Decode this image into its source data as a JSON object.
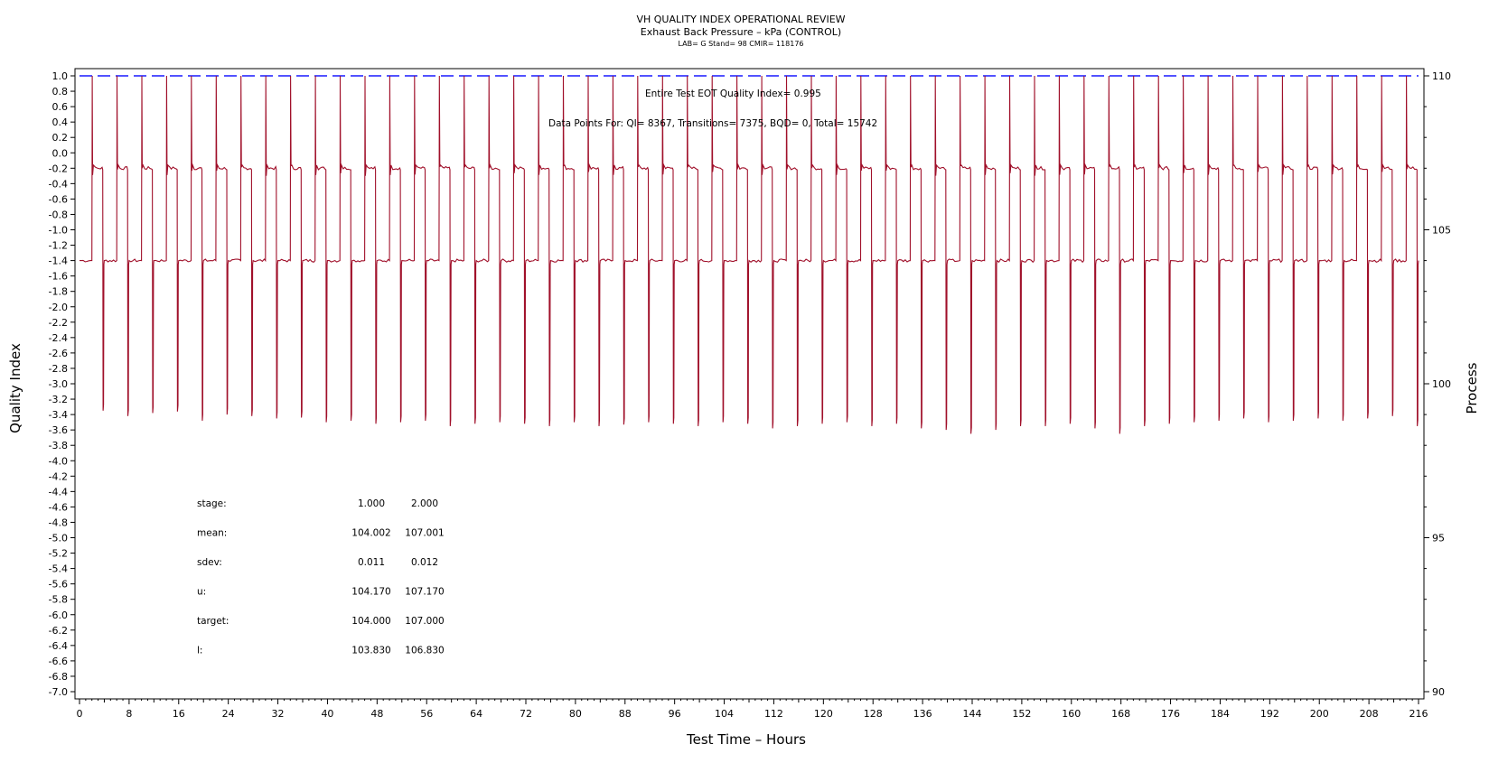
{
  "chart_data": {
    "type": "line",
    "title": "VH QUALITY INDEX OPERATIONAL REVIEW",
    "subtitle": "Exhaust Back Pressure – kPa (CONTROL)",
    "subtitle2": "LAB= G Stand= 98 CMIR= 118176",
    "xlabel": "Test Time – Hours",
    "ylabel_left": "Quality Index",
    "ylabel_right": "Process",
    "xlim": [
      0,
      216
    ],
    "ylim_left": [
      -7.0,
      1.0
    ],
    "ylim_right": [
      90,
      110
    ],
    "xticks": [
      0,
      8,
      16,
      24,
      32,
      40,
      48,
      56,
      64,
      72,
      80,
      88,
      96,
      104,
      112,
      120,
      128,
      136,
      144,
      152,
      160,
      168,
      176,
      184,
      192,
      200,
      208,
      216
    ],
    "yticks_left": [
      "1.0",
      "0.8",
      "0.6",
      "0.4",
      "0.2",
      "0.0",
      "-0.2",
      "-0.4",
      "-0.6",
      "-0.8",
      "-1.0",
      "-1.2",
      "-1.4",
      "-1.6",
      "-1.8",
      "-2.0",
      "-2.2",
      "-2.4",
      "-2.6",
      "-2.8",
      "-3.0",
      "-3.2",
      "-3.4",
      "-3.6",
      "-3.8",
      "-4.0",
      "-4.2",
      "-4.4",
      "-4.6",
      "-4.8",
      "-5.0",
      "-5.2",
      "-5.4",
      "-5.6",
      "-5.8",
      "-6.0",
      "-6.2",
      "-6.4",
      "-6.6",
      "-6.8",
      "-7.0"
    ],
    "yticks_right": [
      90,
      95,
      100,
      105,
      110
    ],
    "annotation_qi": "Entire Test EOT Quality Index=   0.995",
    "annotation_points": "Data Points For: QI=  8367, Transitions=  7375, BQD=     0, Total=  15742",
    "series": [
      {
        "axis": "left",
        "color": "#1a1aff",
        "style": "dashed",
        "points": [
          [
            0,
            1.0
          ],
          [
            216,
            1.0
          ]
        ]
      },
      {
        "axis": "left",
        "color": "#a0102a",
        "style": "solid",
        "cycle_period_hours": 4,
        "cycle_start_hours": 0,
        "stage_levels": [
          -1.4,
          -0.2
        ],
        "peak_value": 1.0,
        "trough_values": [
          -3.35,
          -3.42,
          -3.38,
          -3.36,
          -3.48,
          -3.4,
          -3.42,
          -3.45,
          -3.44,
          -3.5,
          -3.48,
          -3.52,
          -3.5,
          -3.48,
          -3.55,
          -3.52,
          -3.5,
          -3.52,
          -3.55,
          -3.5,
          -3.55,
          -3.53,
          -3.5,
          -3.52,
          -3.55,
          -3.5,
          -3.52,
          -3.58,
          -3.55,
          -3.52,
          -3.5,
          -3.55,
          -3.52,
          -3.58,
          -3.6,
          -3.65,
          -3.6,
          -3.55,
          -3.55,
          -3.52,
          -3.58,
          -3.65,
          -3.55,
          -3.52,
          -3.5,
          -3.48,
          -3.45,
          -3.5,
          -3.48,
          -3.45,
          -3.48,
          -3.45,
          -3.42,
          -3.55
        ]
      }
    ],
    "stats": {
      "header": [
        "stage:",
        "1.000",
        "2.000"
      ],
      "rows": [
        [
          "mean:",
          "104.002",
          "107.001"
        ],
        [
          "sdev:",
          "0.011",
          "0.012"
        ],
        [
          "u:",
          "104.170",
          "107.170"
        ],
        [
          "target:",
          "104.000",
          "107.000"
        ],
        [
          "l:",
          "103.830",
          "106.830"
        ]
      ]
    }
  }
}
